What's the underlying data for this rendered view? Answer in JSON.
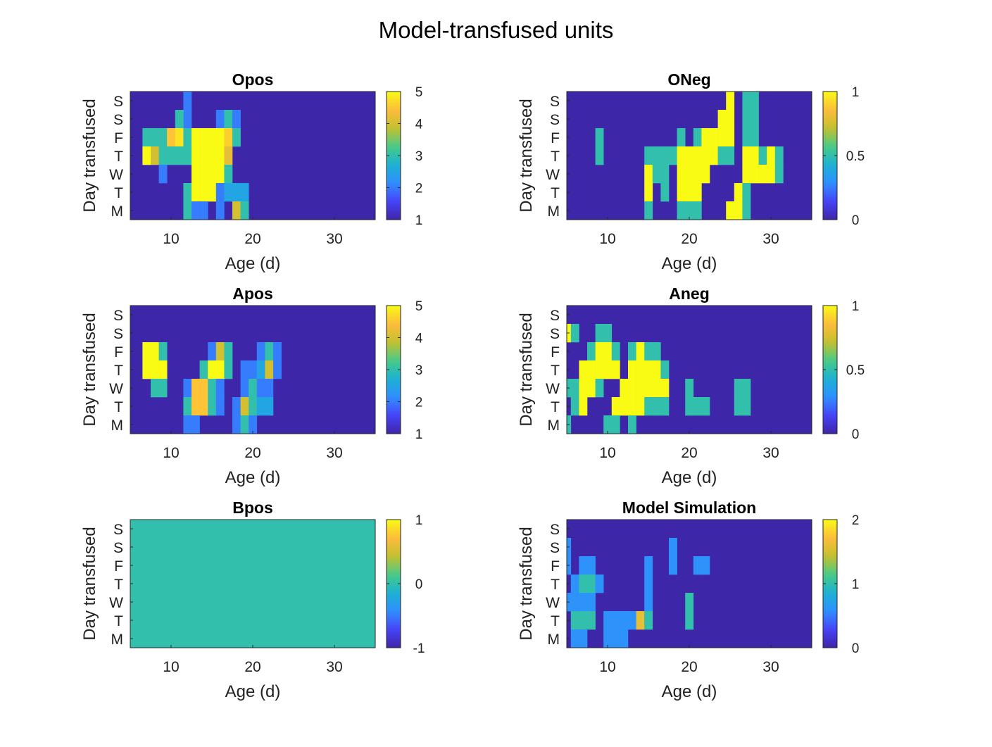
{
  "figure": {
    "title": "Model-transfused units"
  },
  "colormap": [
    "#3e26a8",
    "#4743f8",
    "#2f90fe",
    "#1cb2d2",
    "#48cb86",
    "#c5c02f",
    "#fdbc3c",
    "#f9fb15"
  ],
  "chart_data": [
    {
      "type": "heatmap",
      "title": "Opos",
      "xlabel": "Age (d)",
      "ylabel": "Day transfused",
      "xlim": [
        5,
        35
      ],
      "xticks": [
        "10",
        "20",
        "30"
      ],
      "yticks": [
        "M",
        "T",
        "W",
        "T",
        "F",
        "S",
        "S"
      ],
      "clim": [
        1,
        5
      ],
      "cbar_ticks": [
        "1",
        "2",
        "3",
        "4",
        "5"
      ],
      "default_value": 1,
      "cells": [
        [
          12,
          6,
          2
        ],
        [
          12,
          5,
          2
        ],
        [
          11,
          5,
          3
        ],
        [
          16,
          5,
          2
        ],
        [
          17,
          5,
          3
        ],
        [
          18,
          5,
          2
        ],
        [
          7,
          4,
          3
        ],
        [
          8,
          4,
          3
        ],
        [
          9,
          4,
          3
        ],
        [
          10,
          4,
          4.5
        ],
        [
          11,
          4,
          4.8
        ],
        [
          12,
          4,
          3
        ],
        [
          13,
          4,
          5
        ],
        [
          14,
          4,
          5
        ],
        [
          15,
          4,
          5
        ],
        [
          16,
          4,
          5
        ],
        [
          17,
          4,
          4.6
        ],
        [
          18,
          4,
          3
        ],
        [
          7,
          3,
          5
        ],
        [
          8,
          3,
          4
        ],
        [
          9,
          3,
          3
        ],
        [
          10,
          3,
          3
        ],
        [
          11,
          3,
          3
        ],
        [
          12,
          3,
          3
        ],
        [
          13,
          3,
          5
        ],
        [
          14,
          3,
          5
        ],
        [
          15,
          3,
          5
        ],
        [
          16,
          3,
          5
        ],
        [
          17,
          3,
          4.2
        ],
        [
          9,
          2,
          2
        ],
        [
          13,
          2,
          5
        ],
        [
          14,
          2,
          5
        ],
        [
          15,
          2,
          5
        ],
        [
          16,
          2,
          5
        ],
        [
          17,
          2,
          3
        ],
        [
          12,
          1,
          3
        ],
        [
          13,
          1,
          5
        ],
        [
          14,
          1,
          5
        ],
        [
          15,
          1,
          5
        ],
        [
          16,
          1,
          2
        ],
        [
          17,
          1,
          2.5
        ],
        [
          18,
          1,
          2.5
        ],
        [
          19,
          1,
          2.5
        ],
        [
          12,
          0,
          3
        ],
        [
          13,
          0,
          2
        ],
        [
          14,
          0,
          2
        ],
        [
          16,
          0,
          2
        ],
        [
          18,
          0,
          4
        ],
        [
          19,
          0,
          3
        ]
      ]
    },
    {
      "type": "heatmap",
      "title": "ONeg",
      "xlabel": "Age (d)",
      "ylabel": "Day transfused",
      "xlim": [
        5,
        35
      ],
      "xticks": [
        "10",
        "20",
        "30"
      ],
      "yticks": [
        "M",
        "T",
        "W",
        "T",
        "F",
        "S",
        "S"
      ],
      "clim": [
        0,
        1
      ],
      "cbar_ticks": [
        "0",
        "0.5",
        "1"
      ],
      "default_value": 0,
      "cells": [
        [
          25,
          6,
          1
        ],
        [
          27,
          6,
          0.5
        ],
        [
          28,
          6,
          0.5
        ],
        [
          24,
          5,
          1
        ],
        [
          25,
          5,
          1
        ],
        [
          27,
          5,
          0.5
        ],
        [
          28,
          5,
          0.5
        ],
        [
          9,
          4,
          0.5
        ],
        [
          19,
          4,
          0.5
        ],
        [
          21,
          4,
          0.5
        ],
        [
          22,
          4,
          1
        ],
        [
          23,
          4,
          1
        ],
        [
          24,
          4,
          1
        ],
        [
          25,
          4,
          1
        ],
        [
          27,
          4,
          0.5
        ],
        [
          28,
          4,
          0.5
        ],
        [
          9,
          3,
          0.5
        ],
        [
          15,
          3,
          0.5
        ],
        [
          16,
          3,
          0.5
        ],
        [
          17,
          3,
          0.5
        ],
        [
          18,
          3,
          0.5
        ],
        [
          19,
          3,
          1
        ],
        [
          20,
          3,
          1
        ],
        [
          21,
          3,
          1
        ],
        [
          22,
          3,
          1
        ],
        [
          23,
          3,
          1
        ],
        [
          24,
          3,
          0.5
        ],
        [
          25,
          3,
          0.5
        ],
        [
          27,
          3,
          1
        ],
        [
          28,
          3,
          1
        ],
        [
          29,
          3,
          0.5
        ],
        [
          30,
          3,
          1
        ],
        [
          31,
          3,
          0.5
        ],
        [
          15,
          2,
          1
        ],
        [
          16,
          2,
          0.5
        ],
        [
          17,
          2,
          0.5
        ],
        [
          19,
          2,
          1
        ],
        [
          20,
          2,
          1
        ],
        [
          21,
          2,
          1
        ],
        [
          22,
          2,
          1
        ],
        [
          27,
          2,
          1
        ],
        [
          28,
          2,
          1
        ],
        [
          29,
          2,
          1
        ],
        [
          30,
          2,
          1
        ],
        [
          31,
          2,
          0.5
        ],
        [
          15,
          1,
          1
        ],
        [
          17,
          1,
          0.5
        ],
        [
          19,
          1,
          1
        ],
        [
          20,
          1,
          1
        ],
        [
          21,
          1,
          1
        ],
        [
          26,
          1,
          1
        ],
        [
          27,
          1,
          0.5
        ],
        [
          15,
          0,
          0.5
        ],
        [
          19,
          0,
          0.5
        ],
        [
          20,
          0,
          0.5
        ],
        [
          21,
          0,
          0.5
        ],
        [
          25,
          0,
          1
        ],
        [
          26,
          0,
          1
        ],
        [
          27,
          0,
          0.5
        ]
      ]
    },
    {
      "type": "heatmap",
      "title": "Apos",
      "xlabel": "Age (d)",
      "ylabel": "Day transfused",
      "xlim": [
        5,
        35
      ],
      "xticks": [
        "10",
        "20",
        "30"
      ],
      "yticks": [
        "M",
        "T",
        "W",
        "T",
        "F",
        "S",
        "S"
      ],
      "clim": [
        1,
        5
      ],
      "cbar_ticks": [
        "1",
        "2",
        "3",
        "4",
        "5"
      ],
      "default_value": 1,
      "cells": [
        [
          7,
          4,
          5
        ],
        [
          8,
          4,
          5
        ],
        [
          9,
          4,
          3
        ],
        [
          15,
          4,
          2
        ],
        [
          16,
          4,
          4
        ],
        [
          17,
          4,
          3
        ],
        [
          21,
          4,
          2
        ],
        [
          22,
          4,
          3
        ],
        [
          23,
          4,
          2
        ],
        [
          7,
          3,
          5
        ],
        [
          8,
          3,
          5
        ],
        [
          9,
          3,
          5
        ],
        [
          14,
          3,
          3
        ],
        [
          15,
          3,
          5
        ],
        [
          16,
          3,
          5
        ],
        [
          17,
          3,
          3
        ],
        [
          19,
          3,
          2
        ],
        [
          20,
          3,
          2
        ],
        [
          21,
          3,
          2.5
        ],
        [
          22,
          3,
          4
        ],
        [
          23,
          3,
          2
        ],
        [
          8,
          2,
          3
        ],
        [
          9,
          2,
          3
        ],
        [
          12,
          2,
          2
        ],
        [
          13,
          2,
          4.5
        ],
        [
          14,
          2,
          4.5
        ],
        [
          15,
          2,
          3
        ],
        [
          16,
          2,
          2
        ],
        [
          19,
          2,
          2
        ],
        [
          20,
          2,
          3
        ],
        [
          21,
          2,
          2
        ],
        [
          22,
          2,
          2
        ],
        [
          12,
          1,
          3
        ],
        [
          13,
          1,
          4.5
        ],
        [
          14,
          1,
          4.5
        ],
        [
          15,
          1,
          3
        ],
        [
          16,
          1,
          2
        ],
        [
          18,
          1,
          2
        ],
        [
          19,
          1,
          4
        ],
        [
          20,
          1,
          3
        ],
        [
          21,
          1,
          2.5
        ],
        [
          22,
          1,
          2.5
        ],
        [
          12,
          0,
          2
        ],
        [
          13,
          0,
          2
        ],
        [
          18,
          0,
          2
        ],
        [
          19,
          0,
          3
        ],
        [
          20,
          0,
          2
        ]
      ]
    },
    {
      "type": "heatmap",
      "title": "Aneg",
      "xlabel": "Age (d)",
      "ylabel": "Day transfused",
      "xlim": [
        5,
        35
      ],
      "xticks": [
        "10",
        "20",
        "30"
      ],
      "yticks": [
        "M",
        "T",
        "W",
        "T",
        "F",
        "S",
        "S"
      ],
      "clim": [
        0,
        1
      ],
      "cbar_ticks": [
        "0",
        "0.5",
        "1"
      ],
      "default_value": 0,
      "cells": [
        [
          5,
          5,
          1
        ],
        [
          6,
          5,
          0.5
        ],
        [
          9,
          5,
          0.5
        ],
        [
          10,
          5,
          0.5
        ],
        [
          8,
          4,
          0.5
        ],
        [
          9,
          4,
          1
        ],
        [
          10,
          4,
          1
        ],
        [
          11,
          4,
          0.5
        ],
        [
          13,
          4,
          0.5
        ],
        [
          14,
          4,
          1
        ],
        [
          15,
          4,
          0.5
        ],
        [
          16,
          4,
          0.5
        ],
        [
          7,
          3,
          1
        ],
        [
          8,
          3,
          1
        ],
        [
          9,
          3,
          1
        ],
        [
          10,
          3,
          1
        ],
        [
          11,
          3,
          1
        ],
        [
          13,
          3,
          1
        ],
        [
          14,
          3,
          1
        ],
        [
          15,
          3,
          1
        ],
        [
          16,
          3,
          1
        ],
        [
          17,
          3,
          0.5
        ],
        [
          5,
          2,
          0.5
        ],
        [
          6,
          2,
          0.5
        ],
        [
          7,
          2,
          1
        ],
        [
          8,
          2,
          1
        ],
        [
          9,
          2,
          0.5
        ],
        [
          12,
          2,
          1
        ],
        [
          13,
          2,
          1
        ],
        [
          14,
          2,
          1
        ],
        [
          15,
          2,
          1
        ],
        [
          16,
          2,
          1
        ],
        [
          17,
          2,
          1
        ],
        [
          20,
          2,
          0.5
        ],
        [
          26,
          2,
          0.5
        ],
        [
          27,
          2,
          0.5
        ],
        [
          6,
          1,
          0.5
        ],
        [
          7,
          1,
          1
        ],
        [
          11,
          1,
          1
        ],
        [
          12,
          1,
          1
        ],
        [
          13,
          1,
          1
        ],
        [
          14,
          1,
          1
        ],
        [
          15,
          1,
          0.5
        ],
        [
          16,
          1,
          0.5
        ],
        [
          17,
          1,
          0.5
        ],
        [
          20,
          1,
          0.5
        ],
        [
          21,
          1,
          0.5
        ],
        [
          22,
          1,
          0.5
        ],
        [
          26,
          1,
          0.5
        ],
        [
          27,
          1,
          0.5
        ],
        [
          5,
          0,
          0.5
        ],
        [
          10,
          0,
          0.5
        ],
        [
          11,
          0,
          0.5
        ],
        [
          13,
          0,
          0.5
        ]
      ]
    },
    {
      "type": "heatmap",
      "title": "Bpos",
      "xlabel": "Age (d)",
      "ylabel": "Day transfused",
      "xlim": [
        5,
        35
      ],
      "xticks": [
        "10",
        "20",
        "30"
      ],
      "yticks": [
        "M",
        "T",
        "W",
        "T",
        "F",
        "S",
        "S"
      ],
      "clim": [
        -1,
        1
      ],
      "cbar_ticks": [
        "-1",
        "0",
        "1"
      ],
      "default_value": 0,
      "cells": []
    },
    {
      "type": "heatmap",
      "title": "Model Simulation",
      "xlabel": "Age (d)",
      "ylabel": "Day transfused",
      "xlim": [
        5,
        35
      ],
      "xticks": [
        "10",
        "20",
        "30"
      ],
      "yticks": [
        "M",
        "T",
        "W",
        "T",
        "F",
        "S",
        "S"
      ],
      "clim": [
        0,
        2
      ],
      "cbar_ticks": [
        "0",
        "1",
        "2"
      ],
      "default_value": 0,
      "cells": [
        [
          5,
          5,
          0.6
        ],
        [
          18,
          5,
          0.6
        ],
        [
          5,
          4,
          0.6
        ],
        [
          7,
          4,
          0.6
        ],
        [
          8,
          4,
          0.6
        ],
        [
          15,
          4,
          0.6
        ],
        [
          18,
          4,
          0.6
        ],
        [
          21,
          4,
          0.6
        ],
        [
          22,
          4,
          0.6
        ],
        [
          6,
          3,
          0.6
        ],
        [
          7,
          3,
          1
        ],
        [
          8,
          3,
          1
        ],
        [
          9,
          3,
          0.6
        ],
        [
          15,
          3,
          0.6
        ],
        [
          5,
          2,
          0.6
        ],
        [
          6,
          2,
          0.6
        ],
        [
          7,
          2,
          0.6
        ],
        [
          8,
          2,
          0.6
        ],
        [
          15,
          2,
          0.6
        ],
        [
          20,
          2,
          1
        ],
        [
          6,
          1,
          1
        ],
        [
          7,
          1,
          1
        ],
        [
          8,
          1,
          1
        ],
        [
          10,
          1,
          0.6
        ],
        [
          11,
          1,
          0.6
        ],
        [
          12,
          1,
          0.6
        ],
        [
          13,
          1,
          0.6
        ],
        [
          14,
          1,
          1.6
        ],
        [
          15,
          1,
          1
        ],
        [
          20,
          1,
          1
        ],
        [
          6,
          0,
          0.6
        ],
        [
          7,
          0,
          0.6
        ],
        [
          10,
          0,
          0.6
        ],
        [
          11,
          0,
          0.6
        ],
        [
          12,
          0,
          0.6
        ]
      ]
    }
  ]
}
